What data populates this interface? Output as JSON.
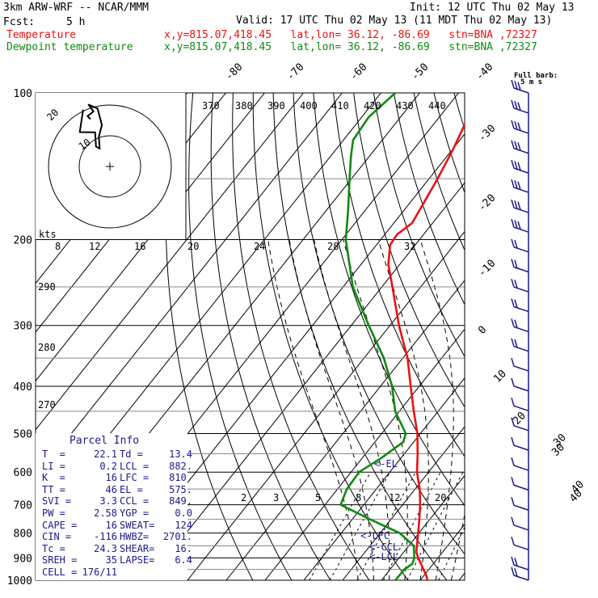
{
  "header": {
    "model": "3km ARW-WRF -- NCAR/MMM",
    "init": "Init: 12 UTC Thu 02 May 13",
    "fcst_label": "Fcst:",
    "fcst_value": "5 h",
    "valid": "Valid: 17 UTC Thu 02 May 13 (11 MDT Thu 02 May 13)",
    "temp_label": "Temperature",
    "temp_loc": "x,y=815.07,418.45   lat,lon= 36.12, -86.69   stn=BNA ,72327",
    "dew_label": "Dewpoint temperature",
    "dew_loc": "x,y=815.07,418.45   lat,lon= 36.12, -86.69   stn=BNA ,72327"
  },
  "colors": {
    "temperature": "#ee1111",
    "dewpoint": "#118811",
    "info": "#1a1a8c",
    "grid": "#000000"
  },
  "chart_data": {
    "type": "line",
    "title": "",
    "xlabel": "",
    "ylabel": "",
    "y_scale": "log",
    "pressure_levels": [
      1000,
      900,
      800,
      700,
      600,
      500,
      400,
      300,
      200,
      100
    ],
    "ylim": [
      1000,
      100
    ],
    "isotherm_labels": [
      "-80",
      "-70",
      "-60",
      "-50",
      "-40",
      "-30",
      "-20",
      "-10",
      "0",
      "10",
      "20",
      "30",
      "40"
    ],
    "theta_labels": [
      "370",
      "380",
      "390",
      "400",
      "410",
      "420",
      "430",
      "440"
    ],
    "theta_low_labels": [
      "290",
      "280",
      "270"
    ],
    "mixing_ratio_top_labels": [
      "8",
      "12",
      "16",
      "20",
      "24",
      "28",
      "32"
    ],
    "mixing_ratio_bottom_labels": [
      "2",
      "3",
      "5",
      "8",
      "12",
      "20"
    ],
    "series": [
      {
        "name": "Temperature",
        "points": [
          {
            "p": 1000,
            "t": 21.9
          },
          {
            "p": 975,
            "t": 20.4
          },
          {
            "p": 950,
            "t": 18.6
          },
          {
            "p": 925,
            "t": 16.8
          },
          {
            "p": 900,
            "t": 14.9
          },
          {
            "p": 875,
            "t": 13.2
          },
          {
            "p": 850,
            "t": 12.1
          },
          {
            "p": 800,
            "t": 9.8
          },
          {
            "p": 750,
            "t": 7.3
          },
          {
            "p": 700,
            "t": 4.5
          },
          {
            "p": 650,
            "t": 1.2
          },
          {
            "p": 600,
            "t": -3.0
          },
          {
            "p": 550,
            "t": -6.6
          },
          {
            "p": 500,
            "t": -10.8
          },
          {
            "p": 450,
            "t": -16.3
          },
          {
            "p": 400,
            "t": -22.2
          },
          {
            "p": 350,
            "t": -28.8
          },
          {
            "p": 300,
            "t": -37.7
          },
          {
            "p": 250,
            "t": -47.3
          },
          {
            "p": 225,
            "t": -52.9
          },
          {
            "p": 205,
            "t": -56.5
          },
          {
            "p": 195,
            "t": -56.8
          },
          {
            "p": 185,
            "t": -55.3
          },
          {
            "p": 170,
            "t": -56.3
          },
          {
            "p": 150,
            "t": -57.8
          },
          {
            "p": 130,
            "t": -59.9
          },
          {
            "p": 115,
            "t": -62.1
          },
          {
            "p": 100,
            "t": -62.4
          }
        ]
      },
      {
        "name": "Dewpoint temperature",
        "points": [
          {
            "p": 1000,
            "t": 13.6
          },
          {
            "p": 950,
            "t": 13.7
          },
          {
            "p": 925,
            "t": 14.6
          },
          {
            "p": 900,
            "t": 13.9
          },
          {
            "p": 850,
            "t": 11.3
          },
          {
            "p": 800,
            "t": 5.0
          },
          {
            "p": 750,
            "t": -5.4
          },
          {
            "p": 700,
            "t": -16.0
          },
          {
            "p": 650,
            "t": -17.6
          },
          {
            "p": 600,
            "t": -17.9
          },
          {
            "p": 560,
            "t": -15.0
          },
          {
            "p": 520,
            "t": -12.7
          },
          {
            "p": 500,
            "t": -13.8
          },
          {
            "p": 450,
            "t": -21.1
          },
          {
            "p": 400,
            "t": -27.0
          },
          {
            "p": 350,
            "t": -34.9
          },
          {
            "p": 300,
            "t": -45.5
          },
          {
            "p": 250,
            "t": -57.5
          },
          {
            "p": 200,
            "t": -69.0
          },
          {
            "p": 175,
            "t": -74.2
          },
          {
            "p": 150,
            "t": -80.5
          },
          {
            "p": 135,
            "t": -84.7
          },
          {
            "p": 125,
            "t": -87.5
          },
          {
            "p": 112,
            "t": -88.2
          },
          {
            "p": 100,
            "t": -86.3
          }
        ]
      }
    ],
    "annotations": [
      "<-EL",
      "<-LFC",
      "<-CCL",
      "<-LCL"
    ],
    "wind_barbs": {
      "label": "Full barb:",
      "label_units": "5 m s",
      "side_labels": [
        "30",
        "40"
      ],
      "levels": [
        100,
        110,
        121,
        133,
        146,
        160,
        176,
        193,
        212,
        233,
        256,
        281,
        309,
        339,
        372,
        409,
        449,
        493,
        541,
        595,
        653,
        718,
        789,
        866,
        952,
        1000
      ],
      "speeds_ms": [
        15,
        15,
        15,
        15,
        15,
        15,
        15,
        15,
        10,
        10,
        10,
        10,
        10,
        10,
        5,
        5,
        5,
        5,
        5,
        5,
        5,
        5,
        5,
        5,
        10,
        10
      ]
    },
    "hodograph": {
      "units_label": "kts",
      "ring_labels": [
        "10",
        "20"
      ],
      "points": [
        [
          0.0,
          7.5
        ],
        [
          -1.0,
          8.5
        ],
        [
          1.0,
          10.0
        ],
        [
          -0.6,
          12.2
        ],
        [
          2.3,
          11.0
        ],
        [
          3.7,
          5.6
        ],
        [
          2.7,
          1.8
        ],
        [
          3.0,
          -2.1
        ],
        [
          1.8,
          -1.4
        ],
        [
          1.5,
          3.2
        ],
        [
          -3.5,
          3.3
        ],
        [
          -2.4,
          10.6
        ]
      ]
    }
  },
  "parcel_info": {
    "title": "Parcel Info",
    "rows": [
      {
        "l1": "T  =",
        "v1": "22.1",
        "l2": "Td =",
        "v2": "13.4"
      },
      {
        "l1": "LI =",
        "v1": "0.2",
        "l2": "LCL =",
        "v2": "882."
      },
      {
        "l1": "K  =",
        "v1": "16",
        "l2": "LFC =",
        "v2": "810."
      },
      {
        "l1": "TT =",
        "v1": "46",
        "l2": "EL =",
        "v2": "575."
      },
      {
        "l1": "SVI =",
        "v1": "3.3",
        "l2": "CCL =",
        "v2": "849."
      },
      {
        "l1": "PW =",
        "v1": "2.58",
        "l2": "YGP =",
        "v2": "0.0"
      },
      {
        "l1": "CAPE =",
        "v1": "16",
        "l2": "SWEAT=",
        "v2": "124"
      },
      {
        "l1": "CIN =",
        "v1": "-116",
        "l2": "HWBZ=",
        "v2": "2701."
      },
      {
        "l1": "Tc =",
        "v1": "24.3",
        "l2": "SHEAR=",
        "v2": "16."
      },
      {
        "l1": "SREH =",
        "v1": "35",
        "l2": "LAPSE=",
        "v2": "6.4"
      },
      {
        "l1": "CELL =",
        "v1": "176/11",
        "l2": "",
        "v2": ""
      }
    ]
  }
}
